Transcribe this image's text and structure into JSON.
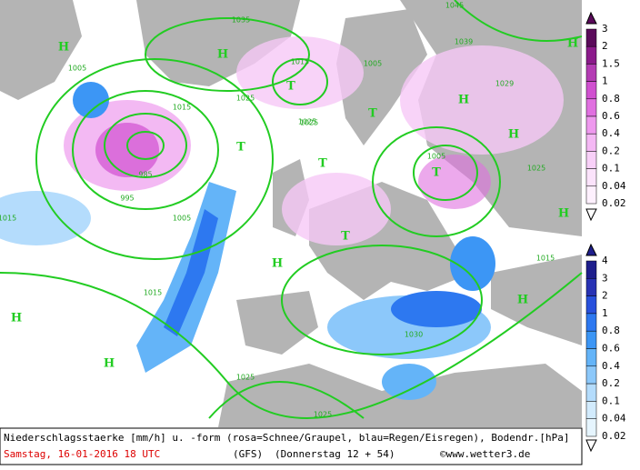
{
  "legend_snow": {
    "labels": [
      "3",
      "2",
      "1.5",
      "1",
      "0.8",
      "0.6",
      "0.4",
      "0.2",
      "0.1",
      "0.04",
      "0.02"
    ]
  },
  "legend_rain": {
    "labels": [
      "4",
      "3",
      "2",
      "1",
      "0.8",
      "0.6",
      "0.4",
      "0.2",
      "0.1",
      "0.04",
      "0.02"
    ]
  },
  "pressure_systems": [
    "H",
    "H",
    "T",
    "H",
    "T",
    "H",
    "T",
    "T",
    "H",
    "H",
    "H",
    "H",
    "T",
    "T",
    "H",
    "H"
  ],
  "isobars": [
    "1035",
    "1025",
    "1015",
    "1005",
    "995",
    "985",
    "1015",
    "1005",
    "1015",
    "1025",
    "1005",
    "1025",
    "1015",
    "1005",
    "1015",
    "1025",
    "1030",
    "1025",
    "1045",
    "1039",
    "1029",
    "1025"
  ],
  "footer": {
    "line1": "Niederschlagsstaerke [mm/h] u. -form (rosa=Schnee/Graupel, blau=Regen/Eisregen), Bodendr.[hPa]",
    "date": "Samstag, 16-01-2016  18 UTC",
    "model": "(GFS)",
    "run": "(Donnerstag 12 + 54)",
    "credit": "©www.wetter3.de"
  }
}
